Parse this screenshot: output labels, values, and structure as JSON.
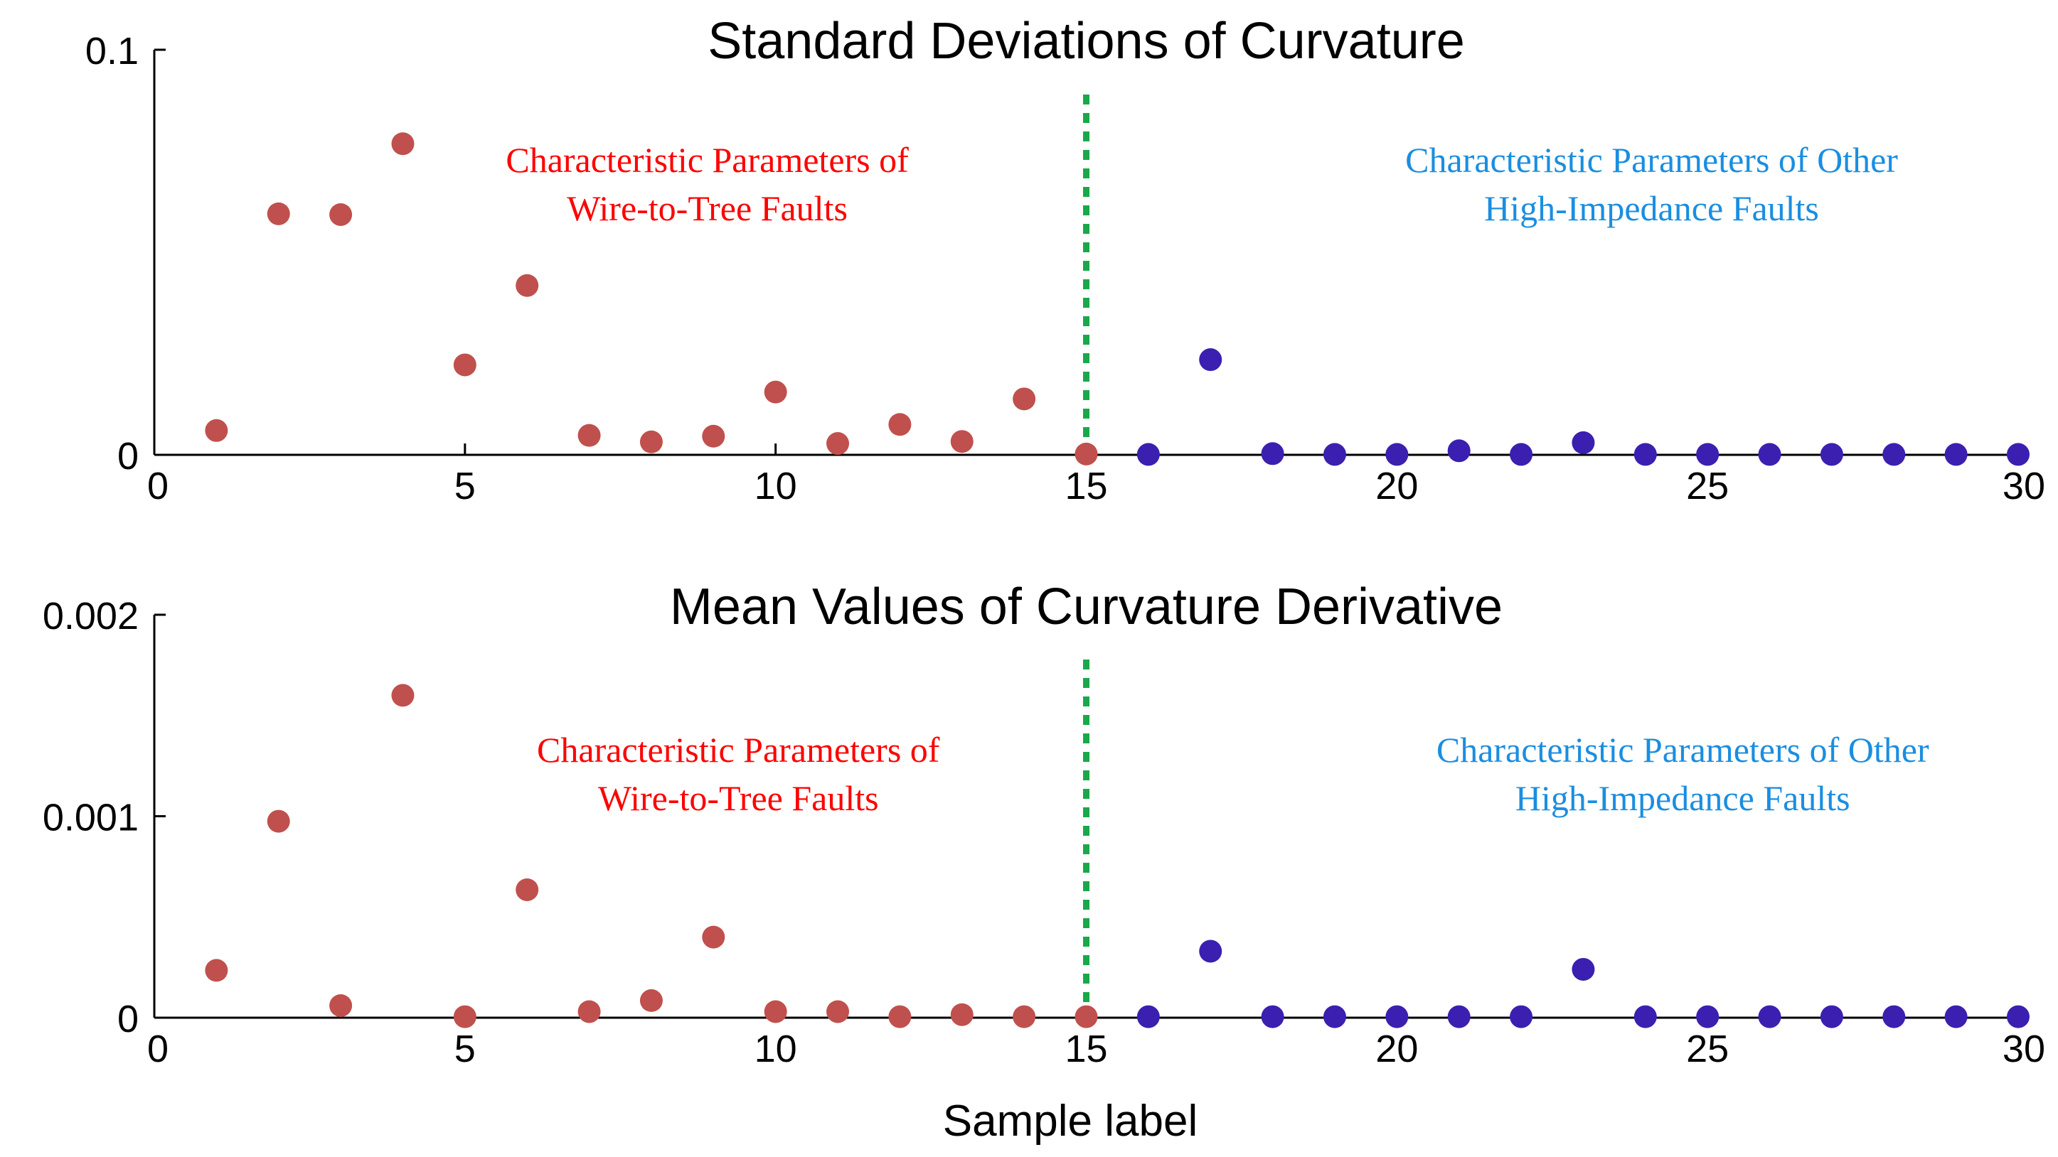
{
  "figure": {
    "xlabel": "Sample label",
    "colors": {
      "wire_to_tree": "#c0504d",
      "other_hif": "#3b1fb0",
      "divider": "#1aa84a",
      "ann_red": "#ff0000",
      "ann_blue": "#1a8ee0"
    }
  },
  "chart_data": [
    {
      "type": "scatter",
      "title": "Standard Deviations of Curvature",
      "xlim": [
        0,
        30
      ],
      "ylim": [
        0,
        0.1
      ],
      "xticks": [
        0,
        5,
        10,
        15,
        20,
        25,
        30
      ],
      "yticks": [
        0,
        0.1
      ],
      "ytick_labels": [
        "0",
        "0.1"
      ],
      "xtick_labels": [
        "0",
        "5",
        "10",
        "15",
        "20",
        "25",
        "30"
      ],
      "divider_x": 15,
      "series": [
        {
          "name": "Wire-to-Tree Faults",
          "color": "#c0504d",
          "x": [
            1,
            2,
            3,
            4,
            5,
            6,
            7,
            8,
            9,
            10,
            11,
            12,
            13,
            14,
            15
          ],
          "y": [
            0.006,
            0.0595,
            0.0593,
            0.0768,
            0.0222,
            0.0418,
            0.0048,
            0.0032,
            0.0046,
            0.0155,
            0.0028,
            0.0075,
            0.0033,
            0.0138,
            0.0002
          ]
        },
        {
          "name": "Other High-Impedance Faults",
          "color": "#3b1fb0",
          "x": [
            16,
            17,
            18,
            19,
            20,
            21,
            22,
            23,
            24,
            25,
            26,
            27,
            28,
            29,
            30
          ],
          "y": [
            0.0001,
            0.0235,
            0.0003,
            0.0001,
            0.0001,
            0.001,
            0.0001,
            0.003,
            0.0001,
            0.0001,
            0.0001,
            0.0001,
            0.0001,
            0.0001,
            0.0001
          ]
        }
      ],
      "annotations": [
        {
          "lines": [
            "Characteristic Parameters of",
            "Wire-to-Tree Faults"
          ],
          "color_key": "ann_red",
          "anchor_x": 8.9
        },
        {
          "lines": [
            "Characteristic Parameters of Other",
            "High-Impedance Faults"
          ],
          "color_key": "ann_blue",
          "anchor_x": 24.1
        }
      ]
    },
    {
      "type": "scatter",
      "title": "Mean Values of Curvature Derivative",
      "xlim": [
        0,
        30
      ],
      "ylim": [
        0,
        0.002
      ],
      "xticks": [
        0,
        5,
        10,
        15,
        20,
        25,
        30
      ],
      "yticks": [
        0,
        0.001,
        0.002
      ],
      "ytick_labels": [
        "0",
        "0.001",
        "0.002"
      ],
      "xtick_labels": [
        "0",
        "5",
        "10",
        "15",
        "20",
        "25",
        "30"
      ],
      "divider_x": 15,
      "series": [
        {
          "name": "Wire-to-Tree Faults",
          "color": "#c0504d",
          "x": [
            1,
            2,
            3,
            4,
            5,
            6,
            7,
            8,
            9,
            10,
            11,
            12,
            13,
            14,
            15
          ],
          "y": [
            0.000235,
            0.000975,
            6e-05,
            0.0016,
            5e-06,
            0.000635,
            3e-05,
            8.5e-05,
            0.0004,
            3e-05,
            3e-05,
            5e-06,
            1.5e-05,
            5e-06,
            5e-06
          ]
        },
        {
          "name": "Other High-Impedance Faults",
          "color": "#3b1fb0",
          "x": [
            16,
            17,
            18,
            19,
            20,
            21,
            22,
            23,
            24,
            25,
            26,
            27,
            28,
            29,
            30
          ],
          "y": [
            5e-06,
            0.00033,
            5e-06,
            5e-06,
            5e-06,
            5e-06,
            5e-06,
            0.00024,
            5e-06,
            5e-06,
            5e-06,
            5e-06,
            5e-06,
            5e-06,
            5e-06
          ]
        }
      ],
      "annotations": [
        {
          "lines": [
            "Characteristic Parameters of",
            "Wire-to-Tree Faults"
          ],
          "color_key": "ann_red",
          "anchor_x": 9.4
        },
        {
          "lines": [
            "Characteristic Parameters of Other",
            "High-Impedance Faults"
          ],
          "color_key": "ann_blue",
          "anchor_x": 24.6
        }
      ]
    }
  ]
}
